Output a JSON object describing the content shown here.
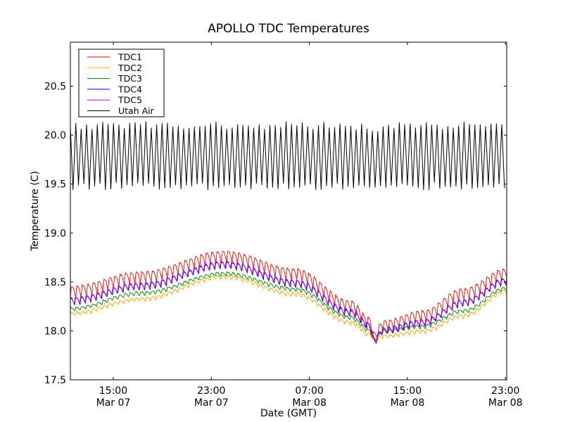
{
  "chart_data": {
    "type": "line",
    "title": "APOLLO TDC Temperatures",
    "xlabel": "Date (GMT)",
    "ylabel": "Temperature (C)",
    "x_unit": "hours since Mar 07 11:30 GMT",
    "xlim": [
      0,
      35.6
    ],
    "ylim": [
      17.5,
      20.95
    ],
    "grid": false,
    "legend_position": "top-left",
    "x_ticks": [
      {
        "value": 3.5,
        "time": "15:00",
        "date": "Mar 07"
      },
      {
        "value": 11.5,
        "time": "23:00",
        "date": "Mar 07"
      },
      {
        "value": 19.5,
        "time": "07:00",
        "date": "Mar 08"
      },
      {
        "value": 27.5,
        "time": "15:00",
        "date": "Mar 08"
      },
      {
        "value": 35.5,
        "time": "23:00",
        "date": "Mar 08"
      }
    ],
    "y_ticks": [
      {
        "value": 17.5,
        "label": "17.5"
      },
      {
        "value": 18.0,
        "label": "18.0"
      },
      {
        "value": 18.5,
        "label": "18.5"
      },
      {
        "value": 19.0,
        "label": "19.0"
      },
      {
        "value": 19.5,
        "label": "19.5"
      },
      {
        "value": 20.0,
        "label": "20.0"
      },
      {
        "value": 20.5,
        "label": "20.5"
      }
    ],
    "x": [
      0,
      5.73,
      12.6,
      18.35,
      22.9,
      24.4,
      24.8,
      25.5,
      28.7,
      32.1,
      35.55
    ],
    "oscillation_period_hours": 0.44,
    "series": [
      {
        "name": "TDC1",
        "color": "#ff0000",
        "values": [
          18.4,
          18.55,
          18.76,
          18.58,
          18.25,
          18.08,
          17.93,
          18.05,
          18.15,
          18.38,
          18.58
        ],
        "oscillation_amplitude": 0.12
      },
      {
        "name": "TDC2",
        "color": "#ffa500",
        "values": [
          18.17,
          18.32,
          18.55,
          18.37,
          18.08,
          17.96,
          17.92,
          17.94,
          17.99,
          18.15,
          18.4
        ],
        "oscillation_amplitude": 0.04
      },
      {
        "name": "TDC3",
        "color": "#008000",
        "values": [
          18.22,
          18.38,
          18.58,
          18.42,
          18.13,
          18.0,
          17.9,
          17.99,
          18.04,
          18.2,
          18.43
        ],
        "oscillation_amplitude": 0.04
      },
      {
        "name": "TDC4",
        "color": "#0000ff",
        "values": [
          18.3,
          18.45,
          18.67,
          18.48,
          18.18,
          18.05,
          17.9,
          18.0,
          18.08,
          18.28,
          18.5
        ],
        "oscillation_amplitude": 0.07
      },
      {
        "name": "TDC5",
        "color": "#bf00bf",
        "values": [
          18.31,
          18.46,
          18.68,
          18.49,
          18.19,
          18.05,
          17.89,
          18.0,
          18.08,
          18.29,
          18.51
        ],
        "oscillation_amplitude": 0.07
      },
      {
        "name": "Utah Air",
        "color": "#000000",
        "values": [
          19.79,
          19.79,
          19.79,
          19.79,
          19.79,
          19.76,
          19.75,
          19.78,
          19.79,
          19.79,
          19.79
        ],
        "oscillation_amplitude": 0.62
      }
    ]
  }
}
